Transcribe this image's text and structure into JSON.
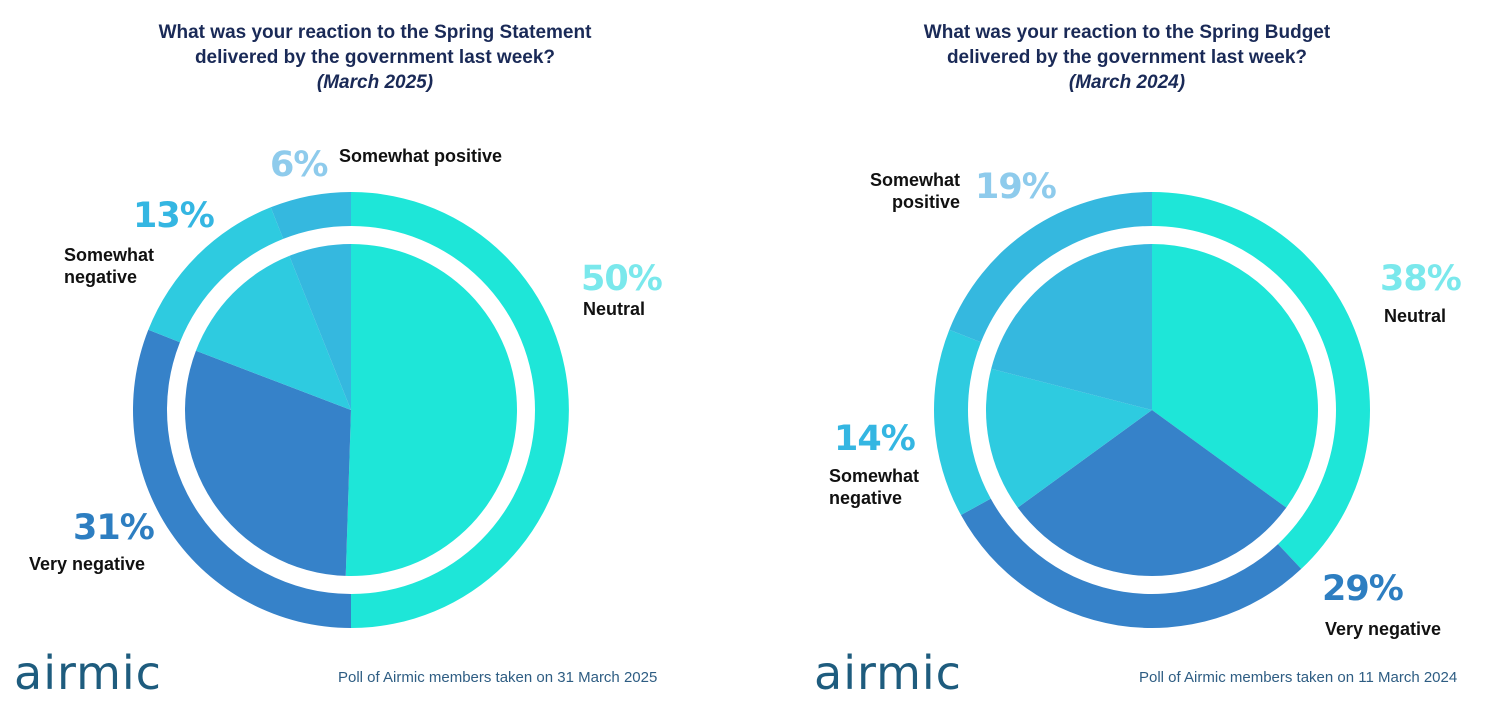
{
  "charts": [
    {
      "title_line1": "What was your reaction to the Spring Statement",
      "title_line2": "delivered by the government last week?",
      "subtitle": "(March 2025)",
      "footnote": "Poll of Airmic members taken on 31 March 2025",
      "logo": "airmic",
      "labels": [
        {
          "pct": "50%",
          "text": "Neutral"
        },
        {
          "pct": "31%",
          "text": "Very negative"
        },
        {
          "pct": "13%",
          "text": "Somewhat\nnegative"
        },
        {
          "pct": "6%",
          "text": "Somewhat positive"
        }
      ]
    },
    {
      "title_line1": "What was your reaction to the Spring Budget",
      "title_line2": "delivered by the government last week?",
      "subtitle": "(March 2024)",
      "footnote": "Poll of Airmic members taken on 11 March 2024",
      "logo": "airmic",
      "labels": [
        {
          "pct": "38%",
          "text": "Neutral"
        },
        {
          "pct": "29%",
          "text": "Very negative"
        },
        {
          "pct": "14%",
          "text": "Somewhat\nnegative"
        },
        {
          "pct": "19%",
          "text": "Somewhat\npositive"
        }
      ]
    }
  ],
  "chart_data": [
    {
      "type": "pie",
      "title": "What was your reaction to the Spring Statement delivered by the government last week? (March 2025)",
      "categories": [
        "Neutral",
        "Very negative",
        "Somewhat negative",
        "Somewhat positive"
      ],
      "values": [
        50,
        31,
        13,
        6
      ],
      "inner_values": [
        50,
        30,
        13,
        6
      ],
      "outer_colors": [
        "#1ee6d8",
        "#3682c9",
        "#2ecbe0",
        "#35b8df"
      ],
      "inner_colors": [
        "#1ee6d8",
        "#3682c9",
        "#2ecbe0",
        "#35b8df"
      ],
      "label_colors": [
        "#7ae8ec",
        "#2d7ec1",
        "#34b6e2",
        "#8ecbec"
      ]
    },
    {
      "type": "pie",
      "title": "What was your reaction to the Spring Budget delivered by the government last week? (March 2024)",
      "categories": [
        "Neutral",
        "Very negative",
        "Somewhat negative",
        "Somewhat positive"
      ],
      "values": [
        38,
        29,
        14,
        19
      ],
      "inner_values": [
        35,
        30,
        14,
        21
      ],
      "outer_colors": [
        "#1ee6d8",
        "#3682c9",
        "#2ecbe0",
        "#35b8df"
      ],
      "inner_colors": [
        "#1ee6d8",
        "#3682c9",
        "#2ecbe0",
        "#35b8df"
      ],
      "label_colors": [
        "#7ae8ec",
        "#2d7ec1",
        "#34b6e2",
        "#8ecbec"
      ]
    }
  ]
}
